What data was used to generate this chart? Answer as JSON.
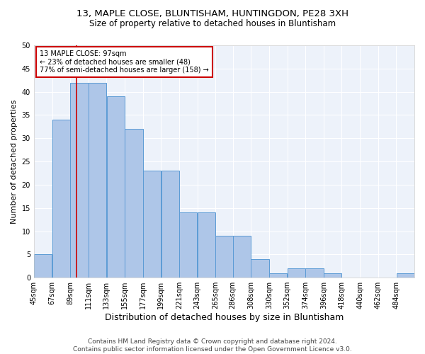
{
  "title1": "13, MAPLE CLOSE, BLUNTISHAM, HUNTINGDON, PE28 3XH",
  "title2": "Size of property relative to detached houses in Bluntisham",
  "xlabel": "Distribution of detached houses by size in Bluntisham",
  "ylabel": "Number of detached properties",
  "footer1": "Contains HM Land Registry data © Crown copyright and database right 2024.",
  "footer2": "Contains public sector information licensed under the Open Government Licence v3.0.",
  "property_label": "13 MAPLE CLOSE: 97sqm",
  "annotation_line1": "← 23% of detached houses are smaller (48)",
  "annotation_line2": "77% of semi-detached houses are larger (158) →",
  "bin_labels": [
    "45sqm",
    "67sqm",
    "89sqm",
    "111sqm",
    "133sqm",
    "155sqm",
    "177sqm",
    "199sqm",
    "221sqm",
    "243sqm",
    "265sqm",
    "286sqm",
    "308sqm",
    "330sqm",
    "352sqm",
    "374sqm",
    "396sqm",
    "418sqm",
    "440sqm",
    "462sqm",
    "484sqm"
  ],
  "bin_edges": [
    45,
    67,
    89,
    111,
    133,
    155,
    177,
    199,
    221,
    243,
    265,
    286,
    308,
    330,
    352,
    374,
    396,
    418,
    440,
    462,
    484,
    506
  ],
  "bar_values": [
    5,
    34,
    42,
    42,
    39,
    32,
    23,
    23,
    14,
    14,
    9,
    9,
    4,
    1,
    2,
    2,
    1,
    0,
    0,
    0,
    1
  ],
  "bar_color": "#aec6e8",
  "bar_edge_color": "#5b9bd5",
  "vline_x": 97,
  "vline_color": "#cc0000",
  "annotation_box_color": "#cc0000",
  "ylim": [
    0,
    50
  ],
  "yticks": [
    0,
    5,
    10,
    15,
    20,
    25,
    30,
    35,
    40,
    45,
    50
  ],
  "bg_color": "#edf2fa",
  "title_fontsize": 9.5,
  "subtitle_fontsize": 8.5,
  "axis_label_fontsize": 8,
  "tick_fontsize": 7,
  "footer_fontsize": 6.5
}
